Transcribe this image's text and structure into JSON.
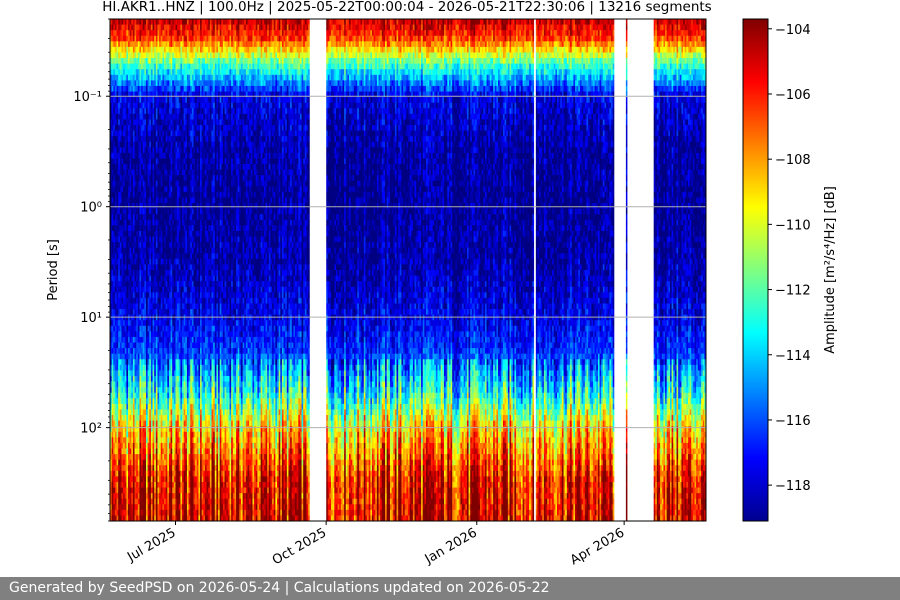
{
  "chart_data": {
    "type": "heatmap",
    "title": "HI.AKR1..HNZ | 100.0Hz | 2025-05-22T00:00:04 - 2026-05-21T22:30:06 | 13216 segments",
    "xlabel": "",
    "ylabel": "Period [s]",
    "yscale": "log",
    "yaxis_inverted": true,
    "ylim": [
      0.02,
      700
    ],
    "y_ticks": [
      0.1,
      1,
      10,
      100
    ],
    "y_tick_labels": [
      "10⁻¹",
      "10⁰",
      "10¹",
      "10²"
    ],
    "xlim": [
      "2025-05-22",
      "2026-05-21"
    ],
    "x_ticks": [
      "2025-07-01",
      "2025-10-01",
      "2026-01-01",
      "2026-04-01"
    ],
    "x_tick_labels": [
      "Jul 2025",
      "Oct 2025",
      "Jan 2026",
      "Apr 2026"
    ],
    "grid": true,
    "colorbar": {
      "label": "Amplitude [m²/s⁴/Hz] [dB]",
      "range": [
        -119.1,
        -103.7
      ],
      "ticks": [
        -118,
        -116,
        -114,
        -112,
        -110,
        -108,
        -106,
        -104
      ],
      "tick_labels": [
        "−118",
        "−116",
        "−114",
        "−112",
        "−110",
        "−108",
        "−106",
        "−104"
      ]
    },
    "data_gaps": [
      [
        "2025-09-21",
        "2025-10-01"
      ],
      [
        "2026-02-05",
        "2026-02-06"
      ],
      [
        "2026-03-26",
        "2026-04-02"
      ],
      [
        "2026-04-03",
        "2026-04-19"
      ]
    ],
    "amplitude_profile": {
      "period_s": [
        0.02,
        0.03,
        0.05,
        0.1,
        0.3,
        1,
        3,
        10,
        20,
        50,
        100,
        300,
        700
      ],
      "amplitude_db": [
        -104.5,
        -106.5,
        -112,
        -117.5,
        -118.6,
        -118.8,
        -118.5,
        -117.5,
        -116.5,
        -113,
        -109,
        -105.5,
        -105
      ]
    }
  },
  "footer": {
    "text": "Generated by SeedPSD on 2026-05-24 | Calculations updated on 2026-05-22"
  }
}
